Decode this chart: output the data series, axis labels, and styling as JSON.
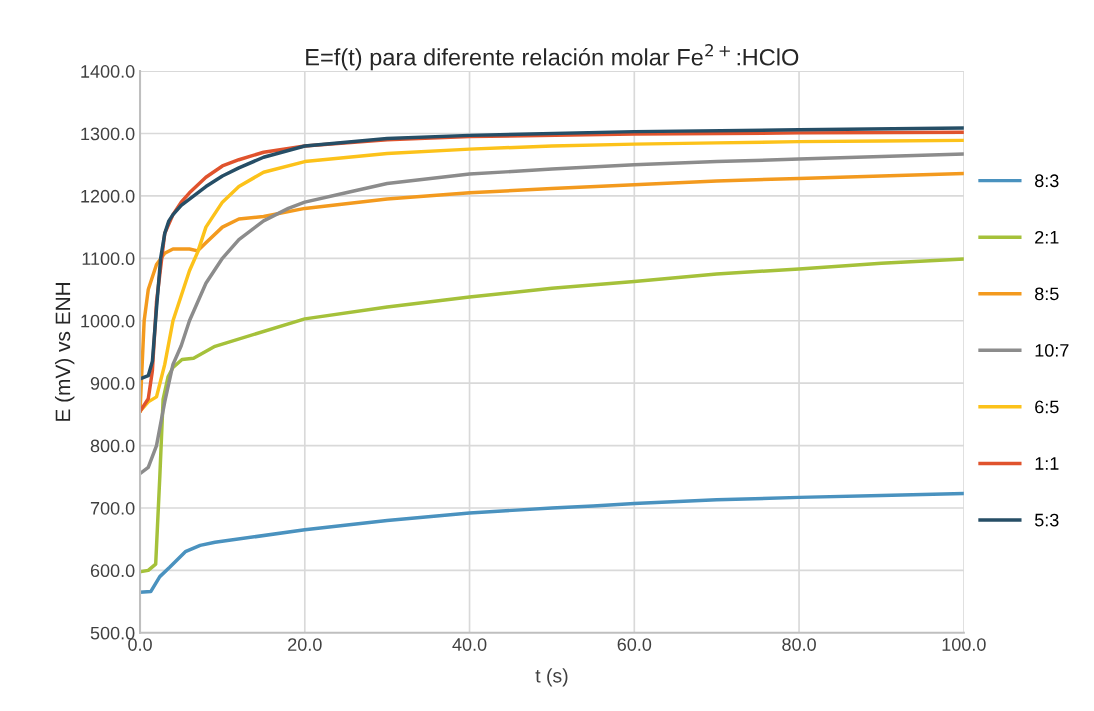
{
  "chart_data": {
    "type": "line",
    "title": "E=f(t) para diferente relación molar Fe$^{2+}$:HClO",
    "xlabel": "t (s)",
    "ylabel": "E (mV) vs ENH",
    "xlim": [
      0,
      100
    ],
    "ylim": [
      500,
      1400
    ],
    "xticks": [
      {
        "value": 0,
        "label": "0.0"
      },
      {
        "value": 20,
        "label": "20.0"
      },
      {
        "value": 40,
        "label": "40.0"
      },
      {
        "value": 60,
        "label": "60.0"
      },
      {
        "value": 80,
        "label": "80.0"
      },
      {
        "value": 100,
        "label": "100.0"
      }
    ],
    "yticks": [
      {
        "value": 500,
        "label": "500.0"
      },
      {
        "value": 600,
        "label": "600.0"
      },
      {
        "value": 700,
        "label": "700.0"
      },
      {
        "value": 800,
        "label": "800.0"
      },
      {
        "value": 900,
        "label": "900.0"
      },
      {
        "value": 1000,
        "label": "1000.0"
      },
      {
        "value": 1100,
        "label": "1100.0"
      },
      {
        "value": 1200,
        "label": "1200.0"
      },
      {
        "value": 1300,
        "label": "1300.0"
      },
      {
        "value": 1400,
        "label": "1400.0"
      }
    ],
    "grid": true,
    "legend": "right",
    "marker": "none",
    "line_style": "solid",
    "series": [
      {
        "name": "8:3",
        "color": "#4a92bf",
        "x": [
          0,
          1.3,
          2.4,
          3.6,
          5.5,
          7.3,
          9.1,
          20,
          30,
          40,
          50,
          55,
          60,
          70,
          80,
          90,
          100
        ],
        "values": [
          565,
          566,
          590,
          605,
          630,
          640,
          645,
          665,
          680,
          692,
          700,
          703,
          707,
          713,
          717,
          720,
          723
        ]
      },
      {
        "name": "2:1",
        "color": "#a5c13a",
        "x": [
          0,
          1,
          1.9,
          2.4,
          2.8,
          3.4,
          4,
          5.1,
          6.5,
          9.1,
          20,
          30,
          40,
          50,
          60,
          70,
          80,
          90,
          100
        ],
        "values": [
          598,
          600,
          610,
          750,
          874,
          910,
          925,
          938,
          940,
          959,
          1003,
          1022,
          1038,
          1052,
          1063,
          1075,
          1083,
          1092,
          1099
        ]
      },
      {
        "name": "8:5",
        "color": "#f39a1e",
        "x": [
          0,
          0.5,
          1,
          2,
          3,
          4,
          6,
          7,
          8,
          10,
          12,
          15,
          20,
          30,
          40,
          50,
          60,
          70,
          80,
          90,
          100
        ],
        "values": [
          855,
          1000,
          1050,
          1090,
          1108,
          1115,
          1115,
          1112,
          1125,
          1150,
          1163,
          1167,
          1180,
          1195,
          1205,
          1212,
          1218,
          1224,
          1228,
          1232,
          1236
        ]
      },
      {
        "name": "10:7",
        "color": "#8c8c8c",
        "x": [
          0,
          1,
          2,
          3,
          4,
          5,
          6,
          7,
          8,
          9,
          10,
          12,
          15,
          18,
          20,
          25,
          30,
          40,
          50,
          60,
          70,
          80,
          90,
          100
        ],
        "values": [
          755,
          765,
          800,
          870,
          930,
          960,
          1000,
          1030,
          1060,
          1080,
          1100,
          1130,
          1160,
          1180,
          1190,
          1205,
          1220,
          1235,
          1243,
          1250,
          1255,
          1259,
          1263,
          1267
        ]
      },
      {
        "name": "6:5",
        "color": "#fcc21a",
        "x": [
          0,
          1,
          2,
          3,
          4,
          5,
          6,
          7,
          8,
          10,
          12,
          15,
          20,
          30,
          40,
          50,
          60,
          70,
          80,
          90,
          100
        ],
        "values": [
          855,
          870,
          878,
          930,
          1000,
          1040,
          1080,
          1110,
          1150,
          1190,
          1215,
          1238,
          1255,
          1268,
          1275,
          1280,
          1283,
          1285,
          1287,
          1288,
          1289
        ]
      },
      {
        "name": "1:1",
        "color": "#e0532d",
        "x": [
          0,
          1,
          1.5,
          2,
          3,
          4,
          5,
          6,
          8,
          10,
          12,
          15,
          20,
          30,
          40,
          60,
          80,
          100
        ],
        "values": [
          855,
          875,
          920,
          1030,
          1140,
          1170,
          1190,
          1205,
          1230,
          1248,
          1258,
          1270,
          1280,
          1290,
          1295,
          1299,
          1301,
          1302
        ]
      },
      {
        "name": "5:3",
        "color": "#264e66",
        "x": [
          0,
          1,
          1.5,
          2,
          2.5,
          3,
          3.5,
          4,
          5,
          6,
          8,
          10,
          12,
          15,
          20,
          30,
          40,
          60,
          80,
          100
        ],
        "values": [
          907,
          912,
          935,
          1020,
          1100,
          1140,
          1160,
          1170,
          1185,
          1195,
          1215,
          1232,
          1245,
          1262,
          1280,
          1292,
          1297,
          1303,
          1306,
          1309
        ]
      }
    ]
  }
}
